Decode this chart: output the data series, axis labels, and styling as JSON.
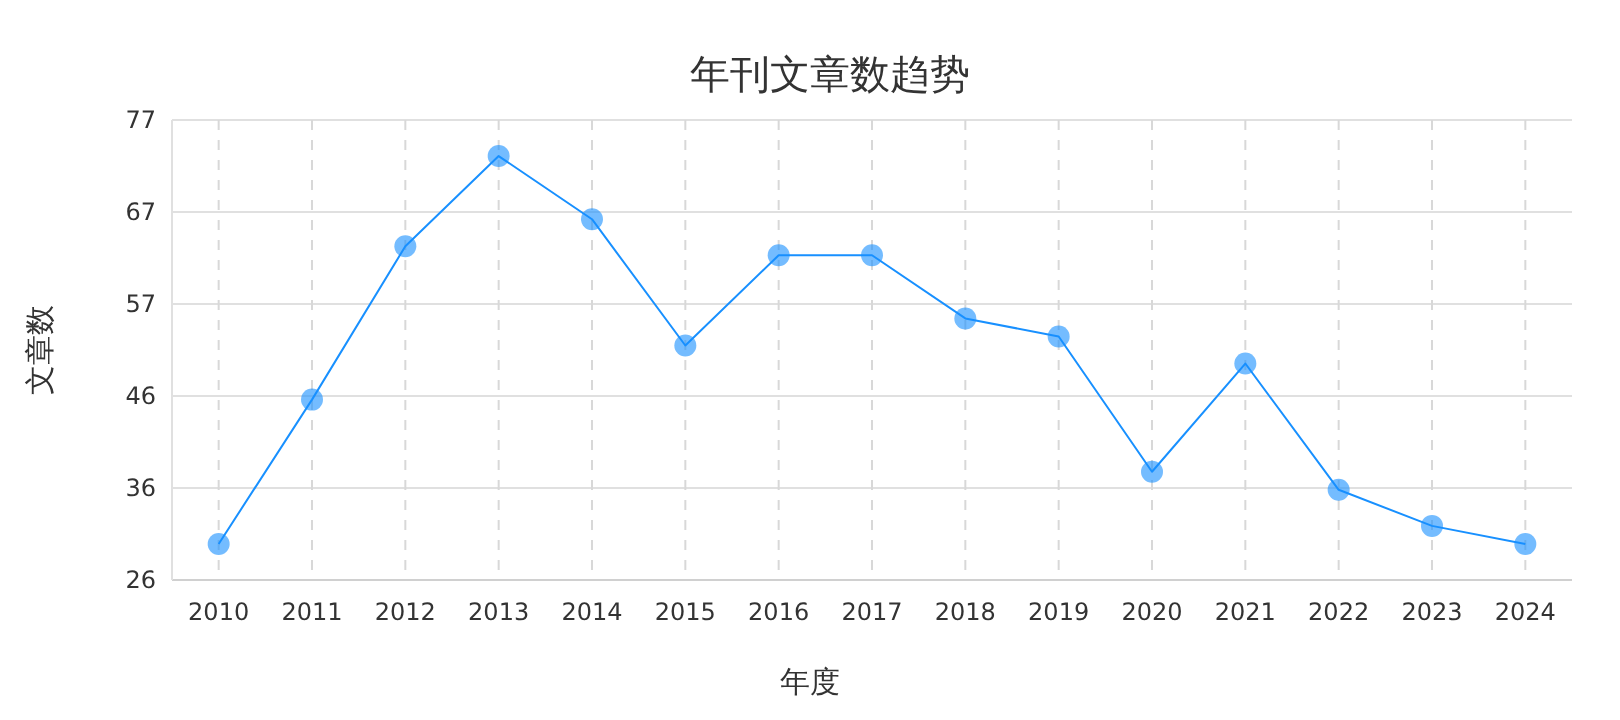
{
  "chart_data": {
    "type": "line",
    "title": "年刊文章数趋势",
    "xlabel": "年度",
    "ylabel": "文章数",
    "categories": [
      "2010",
      "2011",
      "2012",
      "2013",
      "2014",
      "2015",
      "2016",
      "2017",
      "2018",
      "2019",
      "2020",
      "2021",
      "2022",
      "2023",
      "2024"
    ],
    "series": [
      {
        "color": "#1890ff",
        "values": [
          30,
          46,
          63,
          73,
          66,
          52,
          62,
          62,
          55,
          53,
          38,
          50,
          36,
          32,
          30
        ]
      }
    ],
    "ylim": [
      26,
      77
    ],
    "yticks": [
      26,
      {
        "value": 36.2,
        "label": "36"
      },
      {
        "value": 46.4,
        "label": "46"
      },
      {
        "value": 56.6,
        "label": "57"
      },
      {
        "value": 66.8,
        "label": "67"
      },
      77
    ],
    "grid": true,
    "marker": "circle",
    "line_style": "solid"
  }
}
